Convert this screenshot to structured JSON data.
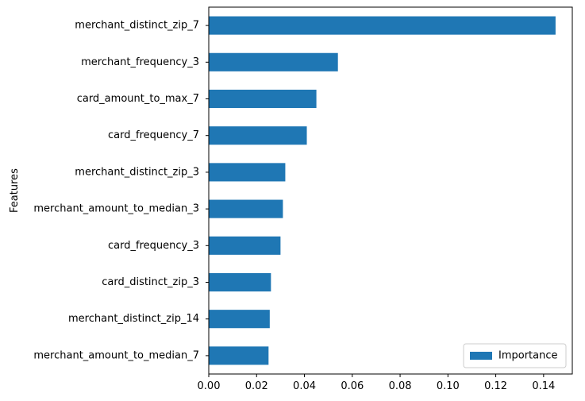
{
  "chart_data": {
    "type": "bar",
    "orientation": "horizontal",
    "categories": [
      "merchant_distinct_zip_7",
      "merchant_frequency_3",
      "card_amount_to_max_7",
      "card_frequency_7",
      "merchant_distinct_zip_3",
      "merchant_amount_to_median_3",
      "card_frequency_3",
      "card_distinct_zip_3",
      "merchant_distinct_zip_14",
      "merchant_amount_to_median_7"
    ],
    "series": [
      {
        "name": "Importance",
        "color": "#1f77b4",
        "values": [
          0.145,
          0.054,
          0.045,
          0.041,
          0.032,
          0.031,
          0.03,
          0.026,
          0.0255,
          0.025
        ]
      }
    ],
    "title": "",
    "xlabel": "",
    "ylabel": "Features",
    "xlim": [
      0,
      0.152
    ],
    "xticks": [
      0.0,
      0.02,
      0.04,
      0.06,
      0.08,
      0.1,
      0.12,
      0.14
    ],
    "xtick_labels": [
      "0.00",
      "0.02",
      "0.04",
      "0.06",
      "0.08",
      "0.10",
      "0.12",
      "0.14"
    ],
    "grid": false,
    "legend": {
      "position": "lower-right",
      "label": "Importance"
    }
  }
}
